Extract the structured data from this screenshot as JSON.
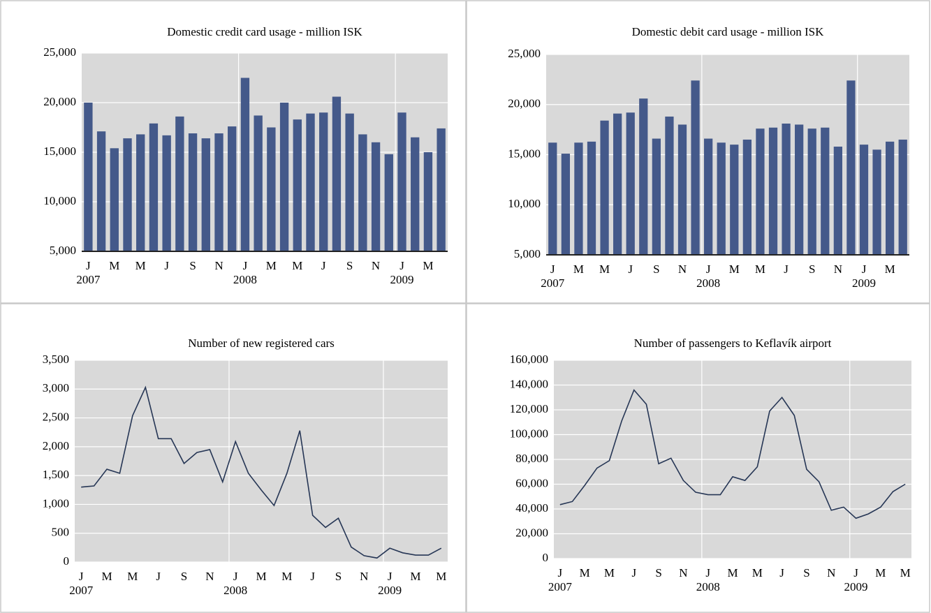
{
  "chart_data": [
    {
      "type": "bar",
      "title": "Domestic credit card usage - million ISK",
      "color": "#44598a",
      "grid": true,
      "categories": [
        "J",
        null,
        "M",
        null,
        "M",
        null,
        "J",
        null,
        "S",
        null,
        "N",
        null,
        "J",
        null,
        "M",
        null,
        "M",
        null,
        "J",
        null,
        "S",
        null,
        "N",
        null,
        "J",
        null,
        "M",
        null
      ],
      "years": [
        "2007",
        "2008",
        "2009"
      ],
      "values": [
        20000,
        17100,
        15400,
        16400,
        16800,
        17900,
        16700,
        18600,
        16900,
        16400,
        16900,
        17600,
        22500,
        18700,
        17500,
        20000,
        18300,
        18900,
        19000,
        20600,
        18900,
        16800,
        16000,
        14800,
        19000,
        16500,
        15000,
        17400
      ],
      "ylim": [
        5000,
        25000
      ],
      "yticks": [
        {
          "value": 5000,
          "label": "5,000"
        },
        {
          "value": 10000,
          "label": "10,000"
        },
        {
          "value": 15000,
          "label": "15,000"
        },
        {
          "value": 20000,
          "label": "20,000"
        },
        {
          "value": 25000,
          "label": "25,000"
        }
      ]
    },
    {
      "type": "bar",
      "title": "Domestic debit card usage - million ISK",
      "color": "#44598a",
      "grid": true,
      "categories": [
        "J",
        null,
        "M",
        null,
        "M",
        null,
        "J",
        null,
        "S",
        null,
        "N",
        null,
        "J",
        null,
        "M",
        null,
        "M",
        null,
        "J",
        null,
        "S",
        null,
        "N",
        null,
        "J",
        null,
        "M",
        null
      ],
      "years": [
        "2007",
        "2008",
        "2009"
      ],
      "values": [
        16200,
        15100,
        16200,
        16300,
        18400,
        19100,
        19200,
        20600,
        16600,
        18800,
        18000,
        22400,
        16600,
        16200,
        16000,
        16500,
        17600,
        17700,
        18100,
        18000,
        17600,
        17700,
        15800,
        22400,
        16000,
        15500,
        16300,
        16500
      ],
      "ylim": [
        5000,
        25000
      ],
      "yticks": [
        {
          "value": 5000,
          "label": "5,000"
        },
        {
          "value": 10000,
          "label": "10,000"
        },
        {
          "value": 15000,
          "label": "15,000"
        },
        {
          "value": 20000,
          "label": "20,000"
        },
        {
          "value": 25000,
          "label": "25,000"
        }
      ]
    },
    {
      "type": "line",
      "title": "Number of new registered cars",
      "color": "#263655",
      "grid": true,
      "categories": [
        "J",
        null,
        "M",
        null,
        "M",
        null,
        "J",
        null,
        "S",
        null,
        "N",
        null,
        "J",
        null,
        "M",
        null,
        "M",
        null,
        "J",
        null,
        "S",
        null,
        "N",
        null,
        "J",
        null,
        "M",
        null,
        "M"
      ],
      "years": [
        "2007",
        "2008",
        "2009"
      ],
      "values": [
        1300,
        1320,
        1610,
        1540,
        2540,
        3030,
        2140,
        2140,
        1710,
        1900,
        1950,
        1390,
        2090,
        1540,
        1250,
        980,
        1540,
        2280,
        810,
        600,
        760,
        260,
        110,
        70,
        240,
        160,
        120,
        120,
        240
      ],
      "ylim": [
        0,
        3500
      ],
      "yticks": [
        0,
        500,
        {
          "value": 1000,
          "label": "1,000"
        },
        {
          "value": 1500,
          "label": "1,500"
        },
        {
          "value": 2000,
          "label": "2,000"
        },
        {
          "value": 2500,
          "label": "2,500"
        },
        {
          "value": 3000,
          "label": "3,000"
        },
        {
          "value": 3500,
          "label": "3,500"
        }
      ]
    },
    {
      "type": "line",
      "title": "Number of passengers to Keflavík airport",
      "color": "#263655",
      "grid": true,
      "categories": [
        "J",
        null,
        "M",
        null,
        "M",
        null,
        "J",
        null,
        "S",
        null,
        "N",
        null,
        "J",
        null,
        "M",
        null,
        "M",
        null,
        "J",
        null,
        "S",
        null,
        "N",
        null,
        "J",
        null,
        "M",
        null,
        "M"
      ],
      "years": [
        "2007",
        "2008",
        "2009"
      ],
      "values": [
        43500,
        46000,
        59000,
        73000,
        79000,
        111000,
        136000,
        124500,
        76500,
        81000,
        63000,
        53500,
        51500,
        51500,
        66000,
        63000,
        74000,
        119000,
        130000,
        115500,
        72000,
        62000,
        39000,
        41500,
        32500,
        36000,
        41500,
        54000,
        60000
      ],
      "ylim": [
        0,
        160000
      ],
      "yticks": [
        0,
        {
          "value": 20000,
          "label": "20,000"
        },
        {
          "value": 40000,
          "label": "40,000"
        },
        {
          "value": 60000,
          "label": "60,000"
        },
        {
          "value": 80000,
          "label": "80,000"
        },
        {
          "value": 100000,
          "label": "100,000"
        },
        {
          "value": 120000,
          "label": "120,000"
        },
        {
          "value": 140000,
          "label": "140,000"
        },
        {
          "value": 160000,
          "label": "160,000"
        }
      ]
    }
  ]
}
